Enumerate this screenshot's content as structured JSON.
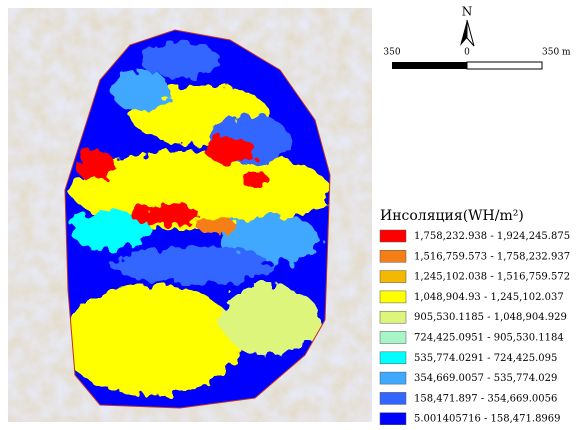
{
  "map": {
    "north_label": "N",
    "scale_labels": [
      "350",
      "0",
      "350 m"
    ],
    "legend": {
      "title": "Инсоляция(WH/m²)",
      "classes": [
        {
          "label": "1,758,232.938 - 1,924,245.875",
          "color": "#ff0000"
        },
        {
          "label": "1,516,759.573 - 1,758,232.937",
          "color": "#f57f17"
        },
        {
          "label": "1,245,102.038 - 1,516,759.572",
          "color": "#f5b800"
        },
        {
          "label": "1,048,904.93 - 1,245,102.037",
          "color": "#ffff00"
        },
        {
          "label": "905,530.1185 - 1,048,904.929",
          "color": "#dcf57a"
        },
        {
          "label": "724,425.0951 - 905,530.1184",
          "color": "#a8f5c8"
        },
        {
          "label": "535,774.0291 - 724,425.095",
          "color": "#00ffff"
        },
        {
          "label": "354,669.0057 - 535,774.029",
          "color": "#3fa9ff"
        },
        {
          "label": "158,471.897 - 354,669.0056",
          "color": "#3366ff"
        },
        {
          "label": "5.001405716 - 158,471.8969",
          "color": "#0000ff"
        }
      ]
    }
  }
}
